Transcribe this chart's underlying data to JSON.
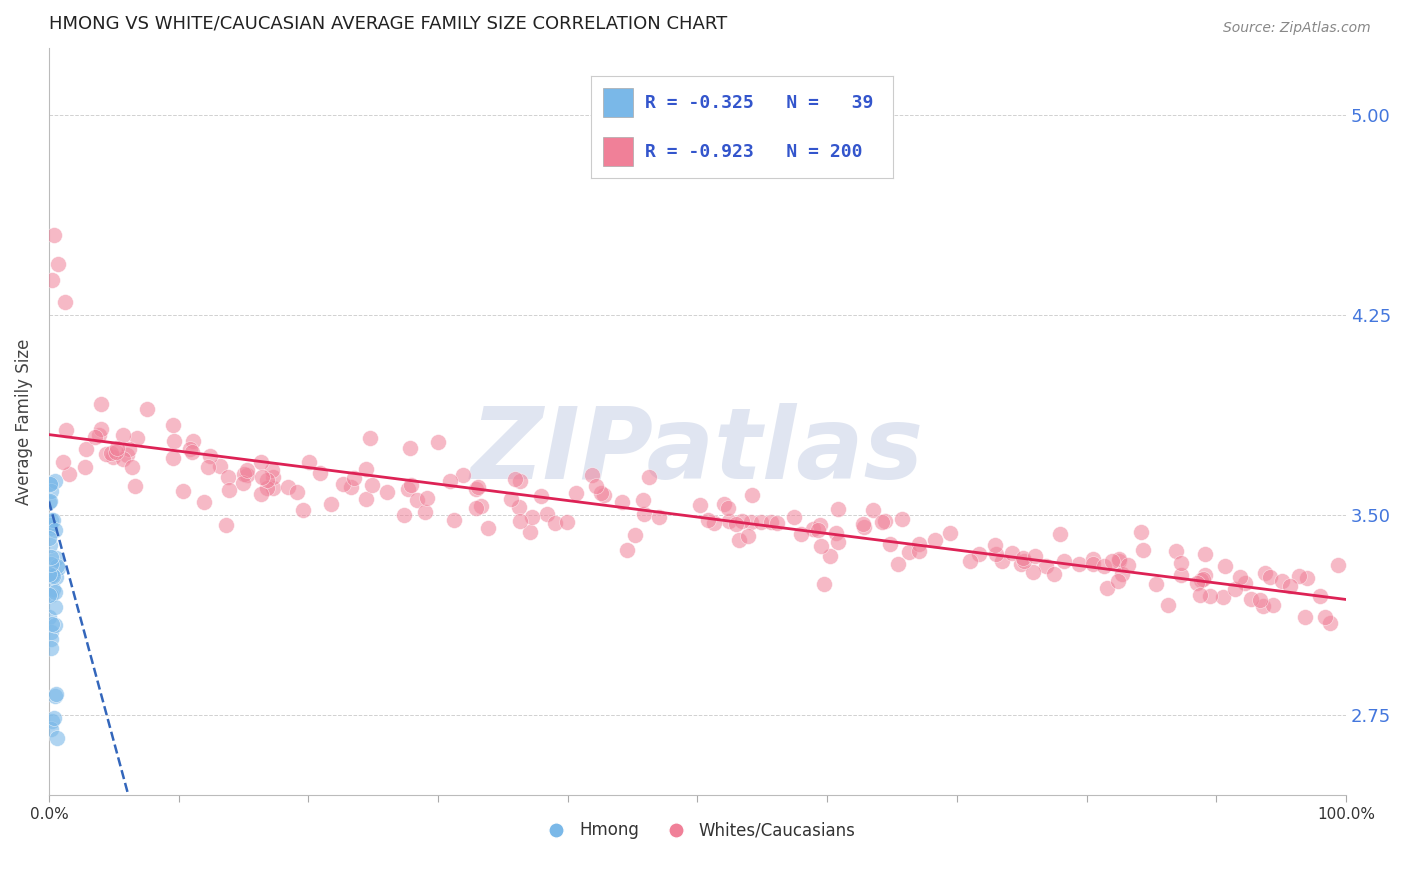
{
  "title": "HMONG VS WHITE/CAUCASIAN AVERAGE FAMILY SIZE CORRELATION CHART",
  "source_text": "Source: ZipAtlas.com",
  "ylabel": "Average Family Size",
  "watermark": "ZIPatlas",
  "xlim": [
    0,
    1
  ],
  "ylim": [
    2.45,
    5.25
  ],
  "yticks": [
    2.75,
    3.5,
    4.25,
    5.0
  ],
  "xtick_labels": [
    "0.0%",
    "",
    "",
    "",
    "",
    "",
    "",
    "",
    "",
    "",
    "100.0%"
  ],
  "hmong_R": -0.325,
  "hmong_N": 39,
  "white_R": -0.923,
  "white_N": 200,
  "hmong_color": "#7ab8e8",
  "white_color": "#f08098",
  "trend_hmong_color": "#3366bb",
  "trend_white_color": "#dd2255",
  "background_color": "#ffffff",
  "title_color": "#222222",
  "title_fontsize": 13,
  "axis_label_color": "#444444",
  "right_tick_color": "#4477dd",
  "source_color": "#888888",
  "watermark_color": "#ccd5e8",
  "legend_text_color": "#3355cc",
  "legend_entry1": "R = -0.325   N =   39",
  "legend_entry2": "R = -0.923   N = 200"
}
